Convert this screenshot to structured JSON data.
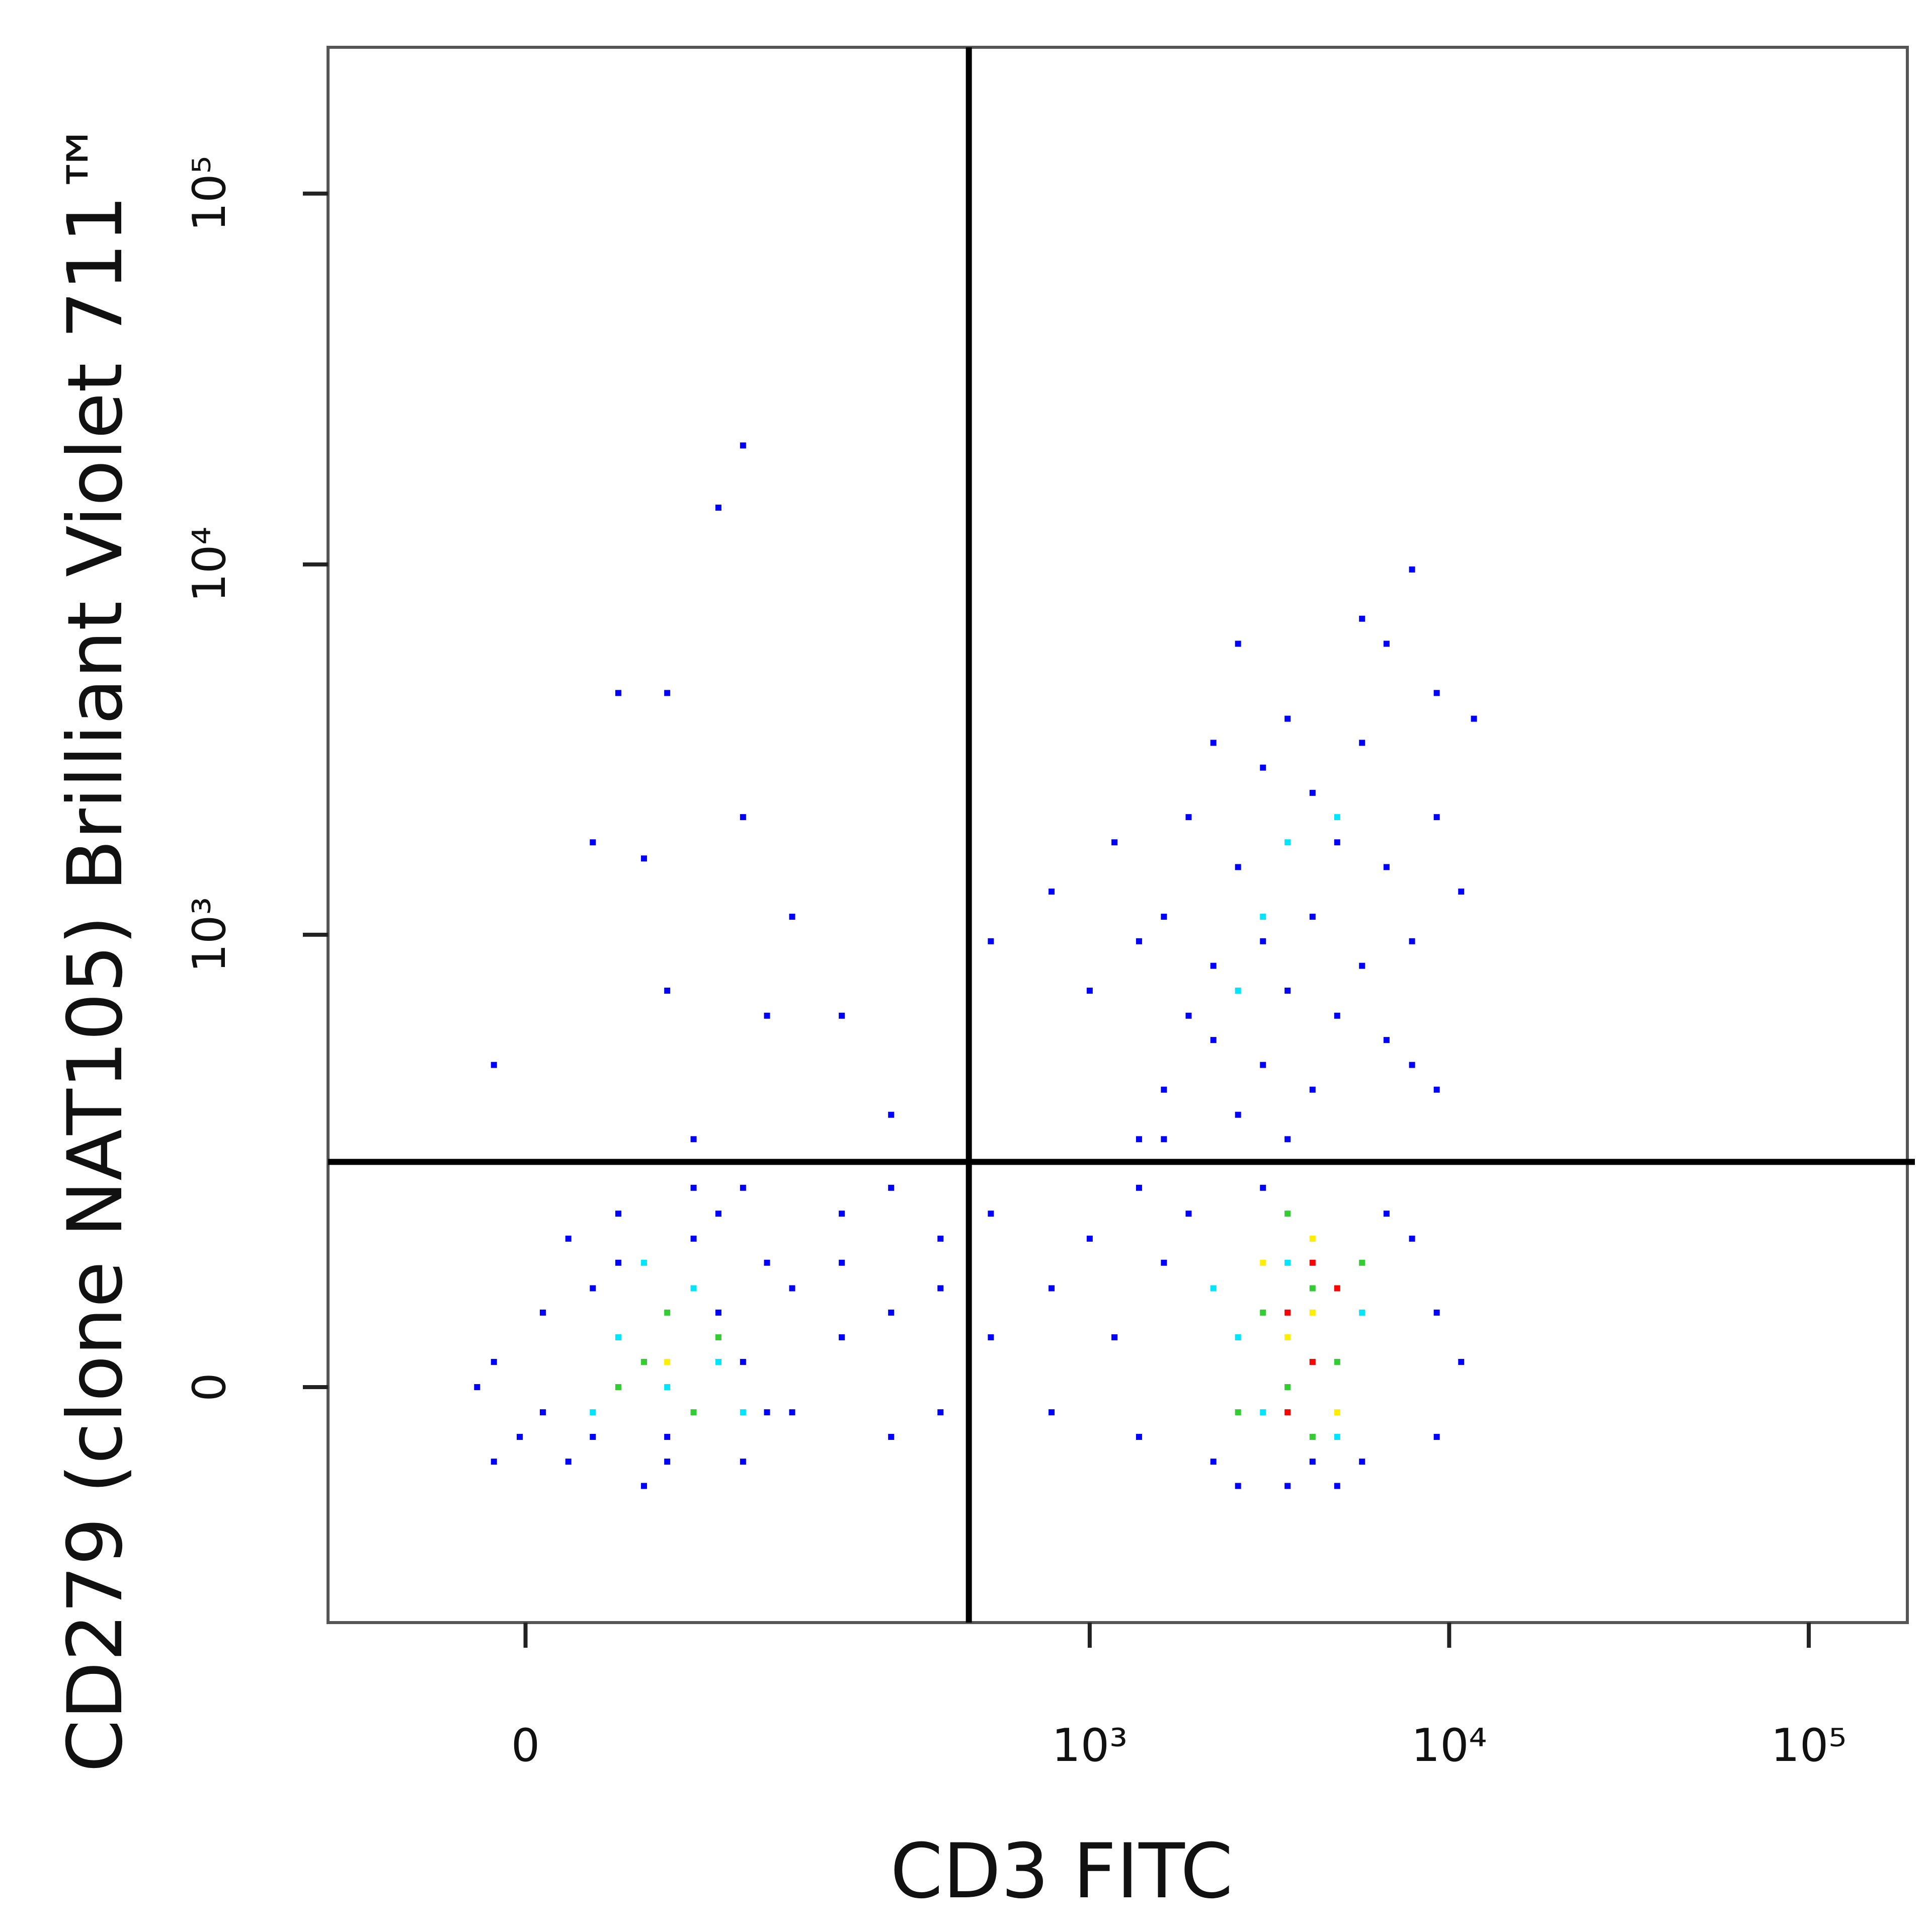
{
  "chart_data": {
    "type": "scatter",
    "x_label": "CD3 FITC",
    "y_label": "CD279 (clone NAT105)  Brilliant Violet 711™",
    "x_scale": "arcsinh",
    "x_cofactor": 54,
    "y_scale": "arcsinh",
    "y_cofactor": 121,
    "xlim": [
      -88,
      188000
    ],
    "ylim": [
      -247,
      248000
    ],
    "xticks": [
      0,
      {
        "value": 1000,
        "label": "10³"
      },
      {
        "value": 10000,
        "label": "10⁴"
      },
      {
        "value": 100000,
        "label": "10⁵"
      }
    ],
    "yticks": [
      0,
      {
        "value": 1000,
        "label": "10³"
      },
      {
        "value": 10000,
        "label": "10⁴"
      },
      {
        "value": 100000,
        "label": "10⁵"
      }
    ],
    "gates": {
      "x": 460,
      "y": 230
    },
    "series": [
      {
        "color": "#0000ff",
        "x": [
          -11,
          -2,
          6,
          15,
          6,
          24,
          34,
          45,
          56,
          70,
          85,
          102,
          121,
          144,
          102,
          85,
          24,
          -17,
          15,
          56,
          121,
          144,
          201,
          70,
          34,
          102,
          -11,
          201,
          278,
          383,
          383,
          530,
          278,
          201,
          530,
          783,
          383,
          278,
          -11,
          24,
          45,
          56,
          85,
          102,
          102,
          121,
          144,
          70,
          34,
          56,
          201,
          278,
          530,
          783,
          783,
          1172,
          1372,
          1609,
          1885,
          2209,
          2587,
          3035,
          3553,
          4169,
          4882,
          5724,
          6696,
          7884,
          9234,
          10800,
          9234,
          1000,
          1372,
          1609,
          1609,
          1885,
          2209,
          2587,
          3035,
          3553,
          4169,
          4882,
          5724,
          6696,
          7884,
          9234,
          10800,
          2209,
          2587,
          3035,
          3553,
          4169,
          4882,
          5724,
          6696,
          7884,
          9234,
          2209,
          2587,
          3035,
          3553,
          4169,
          1885,
          1609,
          1372,
          5724,
          7884,
          11718,
          6696,
          1172,
          9234,
          1000,
          1372
        ],
        "y": [
          19,
          -38,
          58,
          -58,
          -19,
          79,
          103,
          -79,
          -38,
          128,
          58,
          19,
          -19,
          79,
          -58,
          157,
          -38,
          0,
          128,
          -58,
          103,
          -19,
          38,
          191,
          157,
          191,
          -58,
          103,
          58,
          128,
          -19,
          38,
          -38,
          157,
          157,
          79,
          79,
          191,
          439,
          1779,
          1609,
          704,
          14230,
          20933,
          2081,
          601,
          1119,
          269,
          4501,
          4501,
          601,
          317,
          960,
          1309,
          -19,
          38,
          -38,
          103,
          157,
          -58,
          -79,
          191,
          -79,
          -58,
          -79,
          -58,
          157,
          128,
          58,
          19,
          -38,
          128,
          191,
          269,
          1119,
          2081,
          3303,
          6111,
          2831,
          3836,
          2420,
          1779,
          3303,
          1525,
          960,
          2081,
          1309,
          823,
          1525,
          960,
          704,
          1119,
          601,
          823,
          515,
          439,
          374,
          515,
          317,
          439,
          269,
          374,
          601,
          374,
          269,
          7139,
          9692,
          3836,
          6111,
          1779,
          4501,
          704,
          960
        ]
      },
      {
        "color": "#00e5ff",
        "x": [
          34,
          56,
          70,
          24,
          85,
          45,
          102,
          2587,
          3035,
          3553,
          4169,
          4882,
          2209,
          5724,
          3035,
          3553,
          4882,
          2587
        ],
        "y": [
          38,
          0,
          79,
          -19,
          19,
          103,
          -19,
          38,
          -19,
          103,
          19,
          -38,
          79,
          58,
          1119,
          1779,
          2081,
          704
        ]
      },
      {
        "color": "#33cc33",
        "x": [
          45,
          56,
          70,
          34,
          85,
          3035,
          3553,
          4169,
          4882,
          2587,
          5724,
          3553,
          4169
        ],
        "y": [
          19,
          58,
          -19,
          0,
          38,
          58,
          0,
          79,
          19,
          -19,
          103,
          157,
          -38
        ]
      },
      {
        "color": "#ffee00",
        "x": [
          56,
          3553,
          4169,
          4882,
          3035,
          4169
        ],
        "y": [
          19,
          38,
          58,
          -19,
          103,
          128
        ]
      },
      {
        "color": "#ff0000",
        "x": [
          3553,
          4169,
          4882,
          4169,
          3553
        ],
        "y": [
          58,
          19,
          79,
          103,
          -19
        ]
      }
    ]
  }
}
